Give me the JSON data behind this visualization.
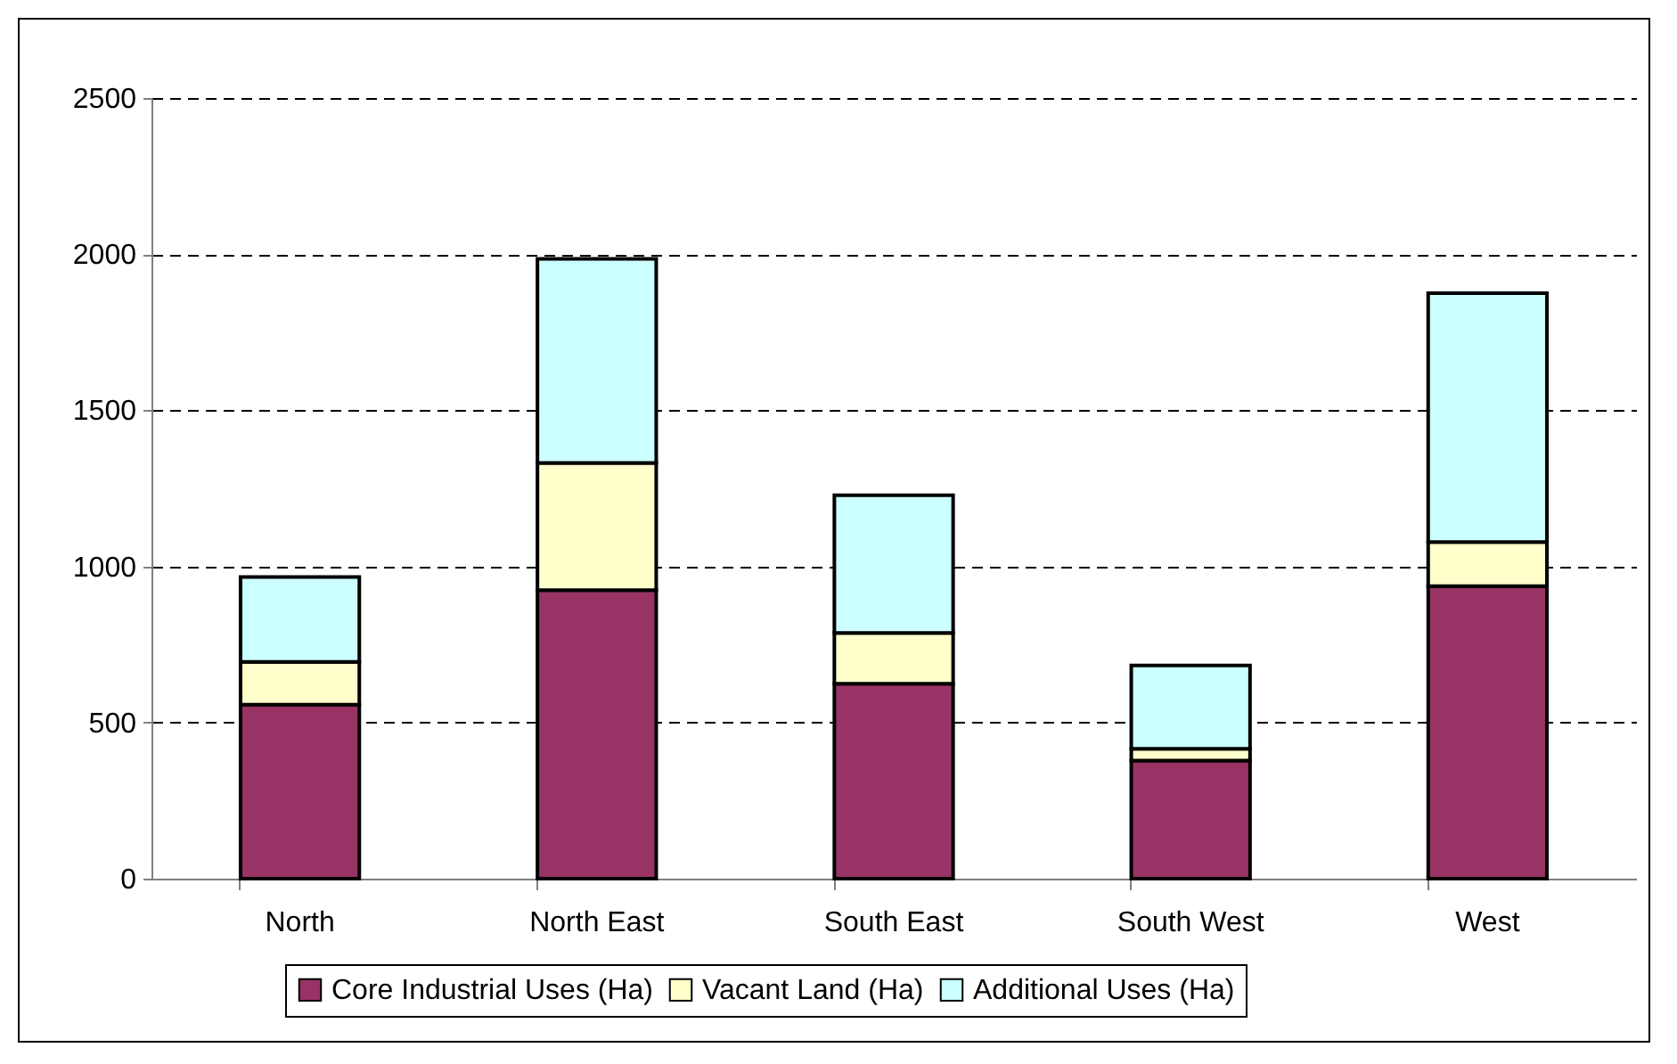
{
  "chart_data": {
    "type": "bar",
    "stacked": true,
    "categories": [
      "North",
      "North East",
      "South East",
      "South West",
      "West"
    ],
    "series": [
      {
        "name": "Core Industrial Uses (Ha)",
        "color": "#993366",
        "values": [
          557,
          924,
          624,
          378,
          937
        ]
      },
      {
        "name": "Vacant Land (Ha)",
        "color": "#ffffcc",
        "values": [
          137,
          407,
          163,
          38,
          141
        ]
      },
      {
        "name": "Additional Uses (Ha)",
        "color": "#ccffff",
        "values": [
          272,
          654,
          441,
          267,
          797
        ]
      }
    ],
    "ylim": [
      0,
      2500
    ],
    "yticks": [
      0,
      500,
      1000,
      1500,
      2000,
      2500
    ],
    "grid": "y",
    "legend": "bottom"
  }
}
